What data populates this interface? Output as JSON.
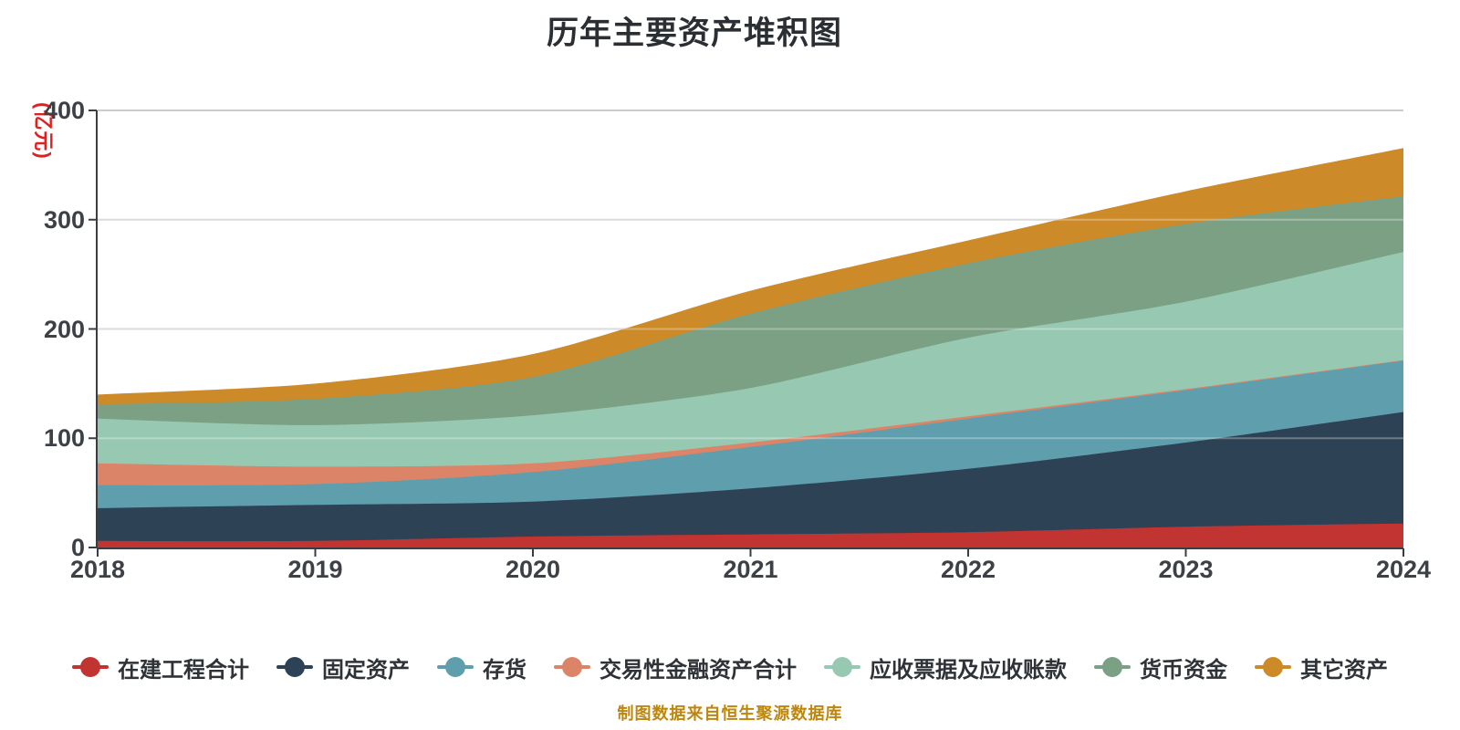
{
  "title": "历年主要资产堆积图",
  "y_axis": {
    "unit": "(亿元)",
    "ticks": [
      "0",
      "100",
      "200",
      "300",
      "400"
    ]
  },
  "x_axis": {
    "ticks": [
      "2018",
      "2019",
      "2020",
      "2021",
      "2022",
      "2023",
      "2024"
    ]
  },
  "caption": "制图数据来自恒生聚源数据库",
  "colors": {
    "background": "#ffffff",
    "title": "#2b2f33",
    "unit_label": "#e01f1f",
    "tick_label": "#3d4146",
    "legend_text": "#2f3338",
    "caption": "#bd870e",
    "axis": "#3a3e43",
    "grid": "#cccccc",
    "grid_overlay": "rgba(255,255,255,0.3)"
  },
  "chart_data": {
    "type": "area",
    "stacked": true,
    "smooth": true,
    "title": "历年主要资产堆积图",
    "ylabel": "(亿元)",
    "ylim": [
      0,
      400
    ],
    "grid": true,
    "legend_position": "bottom",
    "categories": [
      "2018",
      "2019",
      "2020",
      "2021",
      "2022",
      "2023",
      "2024"
    ],
    "series": [
      {
        "name": "在建工程合计",
        "color": "#c23431",
        "values": [
          6,
          6,
          10,
          12,
          14,
          19,
          22
        ]
      },
      {
        "name": "固定资产",
        "color": "#2e4256",
        "values": [
          30,
          33,
          32,
          42,
          58,
          77,
          102
        ]
      },
      {
        "name": "存货",
        "color": "#5f9ead",
        "values": [
          21,
          19,
          27,
          38,
          46,
          48,
          47
        ]
      },
      {
        "name": "交易性金融资产合计",
        "color": "#dc8467",
        "values": [
          20,
          16,
          8,
          4,
          2,
          1,
          0.5
        ]
      },
      {
        "name": "应收票据及应收账款",
        "color": "#97c9b2",
        "values": [
          41,
          38,
          44,
          50,
          72,
          80,
          99
        ]
      },
      {
        "name": "货币资金",
        "color": "#7ba084",
        "values": [
          13,
          24,
          35,
          68,
          68,
          71,
          51
        ]
      },
      {
        "name": "其它资产",
        "color": "#cd8a28",
        "values": [
          9,
          14,
          21,
          21,
          21,
          30,
          44
        ]
      }
    ]
  }
}
